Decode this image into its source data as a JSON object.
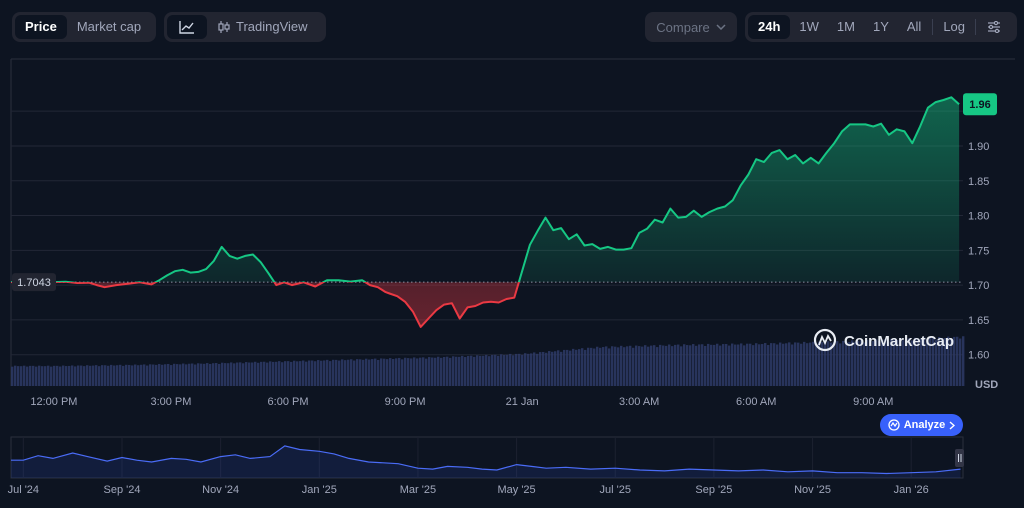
{
  "toolbar": {
    "price_label": "Price",
    "market_cap_label": "Market cap",
    "tradingview_label": "TradingView",
    "compare_label": "Compare",
    "ranges": [
      "24h",
      "1W",
      "1M",
      "1Y",
      "All"
    ],
    "active_range": "24h",
    "log_label": "Log"
  },
  "colors": {
    "up": "#16c784",
    "down": "#ea3943",
    "accent": "#3861fb",
    "background": "#0d1421"
  },
  "watermark": "CoinMarketCap",
  "analyze_label": "Analyze",
  "chart_data": {
    "type": "area",
    "currency_label": "USD",
    "reference_value": 1.7043,
    "reference_label": "1.7043",
    "current_value": 1.96,
    "current_label": "1.96",
    "ylim": [
      1.555,
      2.025
    ],
    "y_ticks": [
      1.6,
      1.65,
      1.7,
      1.75,
      1.8,
      1.85,
      1.9
    ],
    "y_tick_labels": [
      "1.60",
      "1.65",
      "1.70",
      "1.75",
      "1.80",
      "1.85",
      "1.90"
    ],
    "x_ticks": [
      {
        "t": 0,
        "label": "12:00 PM"
      },
      {
        "t": 3,
        "label": "3:00 PM"
      },
      {
        "t": 6,
        "label": "6:00 PM"
      },
      {
        "t": 9,
        "label": "9:00 PM"
      },
      {
        "t": 12,
        "label": "21 Jan"
      },
      {
        "t": 15,
        "label": "3:00 AM"
      },
      {
        "t": 18,
        "label": "6:00 AM"
      },
      {
        "t": 21,
        "label": "9:00 AM"
      }
    ],
    "xlim": [
      -1.1,
      23.3
    ],
    "price_series": {
      "t": [
        0.0,
        0.3,
        0.6,
        0.9,
        1.1,
        1.3,
        1.6,
        1.9,
        2.2,
        2.5,
        2.7,
        2.9,
        3.1,
        3.3,
        3.5,
        3.7,
        3.9,
        4.1,
        4.3,
        4.5,
        4.7,
        4.9,
        5.1,
        5.3,
        5.5,
        5.7,
        5.9,
        6.1,
        6.4,
        6.7,
        7.0,
        7.3,
        7.6,
        7.9,
        8.1,
        8.3,
        8.5,
        8.6,
        8.8,
        9.0,
        9.2,
        9.4,
        9.6,
        9.8,
        10.0,
        10.2,
        10.4,
        10.6,
        10.8,
        11.0,
        11.2,
        11.4,
        11.6,
        11.8,
        12.0,
        12.2,
        12.4,
        12.6,
        12.8,
        13.0,
        13.2,
        13.4,
        13.6,
        13.8,
        14.0,
        14.2,
        14.4,
        14.6,
        14.8,
        15.0,
        15.2,
        15.4,
        15.6,
        15.8,
        16.0,
        16.2,
        16.4,
        16.6,
        16.8,
        17.0,
        17.2,
        17.4,
        17.6,
        17.8,
        18.0,
        18.2,
        18.4,
        18.6,
        18.8,
        19.0,
        19.2,
        19.4,
        19.6,
        19.8,
        20.0,
        20.2,
        20.4,
        20.6,
        20.8,
        21.0,
        21.2,
        21.4,
        21.6,
        21.8,
        22.0,
        22.2,
        22.4,
        22.6,
        22.8,
        23.0,
        23.2
      ],
      "values": [
        1.7043,
        1.7049,
        1.703,
        1.7035,
        1.7,
        1.697,
        1.7,
        1.702,
        1.704,
        1.701,
        1.707,
        1.714,
        1.72,
        1.722,
        1.718,
        1.719,
        1.723,
        1.735,
        1.755,
        1.742,
        1.738,
        1.742,
        1.744,
        1.733,
        1.717,
        1.7,
        1.704,
        1.7,
        1.704,
        1.698,
        1.707,
        1.707,
        1.705,
        1.707,
        1.7,
        1.697,
        1.69,
        1.688,
        1.684,
        1.676,
        1.662,
        1.64,
        1.652,
        1.664,
        1.672,
        1.674,
        1.652,
        1.668,
        1.67,
        1.675,
        1.676,
        1.675,
        1.68,
        1.682,
        1.72,
        1.758,
        1.778,
        1.797,
        1.779,
        1.782,
        1.766,
        1.773,
        1.757,
        1.759,
        1.752,
        1.755,
        1.751,
        1.751,
        1.753,
        1.775,
        1.781,
        1.794,
        1.79,
        1.81,
        1.797,
        1.798,
        1.807,
        1.798,
        1.805,
        1.81,
        1.813,
        1.822,
        1.843,
        1.859,
        1.881,
        1.877,
        1.89,
        1.894,
        1.881,
        1.887,
        1.875,
        1.883,
        1.875,
        1.89,
        1.904,
        1.921,
        1.931,
        1.931,
        1.931,
        1.928,
        1.932,
        1.916,
        1.924,
        1.921,
        1.904,
        1.928,
        1.955,
        1.963,
        1.966,
        1.97,
        1.96
      ]
    },
    "volume_series": {
      "t": [
        0,
        2,
        4,
        6,
        8,
        10,
        12,
        14,
        16,
        18,
        20,
        22,
        23.2
      ],
      "values": [
        0.38,
        0.4,
        0.43,
        0.47,
        0.51,
        0.55,
        0.61,
        0.74,
        0.78,
        0.8,
        0.84,
        0.9,
        0.93
      ]
    }
  },
  "navigator": {
    "labels": [
      "Jul '24",
      "Sep '24",
      "Nov '24",
      "Jan '25",
      "Mar '25",
      "May '25",
      "Jul '25",
      "Sep '25",
      "Nov '25",
      "Jan '26"
    ],
    "label_months": [
      0,
      2,
      4,
      6,
      8,
      10,
      12,
      14,
      16,
      18
    ],
    "xlim": [
      -0.25,
      19.05
    ],
    "ylim": [
      1.0,
      3.3
    ],
    "months": [
      0,
      0.3,
      0.6,
      1.0,
      1.3,
      1.7,
      2.0,
      2.3,
      2.6,
      3.0,
      3.3,
      3.6,
      4.0,
      4.3,
      4.6,
      5.0,
      5.3,
      5.6,
      6.0,
      6.3,
      6.6,
      7.0,
      7.3,
      7.6,
      8.0,
      8.3,
      8.6,
      9.0,
      9.3,
      9.6,
      10.0,
      10.3,
      10.6,
      11.0,
      11.5,
      12.0,
      12.5,
      13.0,
      13.5,
      14.0,
      14.5,
      15.0,
      15.5,
      16.0,
      16.5,
      17.0,
      17.5,
      18.0,
      18.5,
      19.0
    ],
    "values": [
      2.0,
      2.25,
      2.1,
      2.4,
      2.2,
      1.95,
      2.15,
      2.0,
      1.9,
      2.1,
      2.05,
      1.9,
      2.2,
      2.3,
      2.1,
      2.2,
      2.8,
      2.6,
      2.5,
      2.35,
      2.1,
      1.9,
      1.85,
      1.8,
      1.55,
      1.5,
      1.65,
      1.6,
      1.5,
      1.45,
      1.75,
      1.65,
      1.55,
      1.6,
      1.5,
      1.55,
      1.45,
      1.4,
      1.5,
      1.45,
      1.4,
      1.45,
      1.35,
      1.4,
      1.3,
      1.3,
      1.25,
      1.3,
      1.35,
      1.5
    ]
  }
}
